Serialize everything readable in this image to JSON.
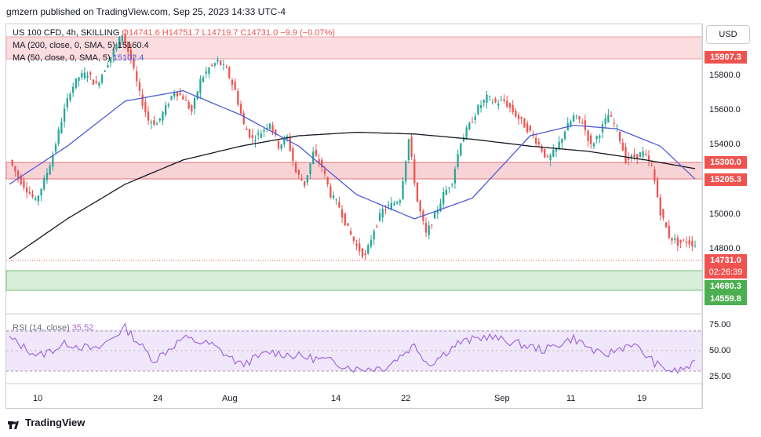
{
  "header": {
    "published": "gmzern published on TradingView.com, Sep 25, 2023 14:33 UTC-4"
  },
  "legend": {
    "symbol": "US 100 CFD, 4h, SKILLING",
    "ohlc": "O14741.6  H14751.7  L14719.7  C14731.0  −9.9  (−0.07%)",
    "ma200_label": "MA (200, close, 0, SMA, 5)",
    "ma200_value": "15160.4",
    "ma50_label": "MA (50, close, 0, SMA, 5)",
    "ma50_value": "15102.4",
    "rsi_label": "RSI (14, close)",
    "rsi_value": "35.52"
  },
  "currency": "USD",
  "price_axis": [
    "15800.0",
    "15600.0",
    "15400.0",
    "15000.0",
    "14800.0"
  ],
  "rsi_axis": [
    "75.00",
    "50.00",
    "25.00"
  ],
  "time_axis": [
    "10",
    "24",
    "Aug",
    "14",
    "22",
    "Sep",
    "11",
    "19"
  ],
  "price_tags": {
    "zone_top": "15907.3",
    "zone_upper_top": "15300.0",
    "zone_upper_bottom": "15205.3",
    "last_price": "14731.0",
    "countdown": "02:26:39",
    "zone_lower_top": "14680.3",
    "zone_lower_bottom": "14559.8"
  },
  "colors": {
    "up": "#26a69a",
    "down": "#ef5350",
    "ma50": "#4e5bd8",
    "ma200": "#131722",
    "rsi": "#9c6ade",
    "resistance": "#f7c6c9",
    "support": "#cfe9cf"
  },
  "footer": {
    "brand": "TradingView"
  },
  "chart_data": {
    "type": "candlestick",
    "symbol": "US 100 CFD",
    "timeframe": "4h",
    "zones": [
      {
        "type": "resistance",
        "from": 15907.3,
        "to": 15990
      },
      {
        "type": "resistance",
        "from": 15205.3,
        "to": 15300.0
      },
      {
        "type": "support",
        "from": 14559.8,
        "to": 14680.3
      }
    ],
    "close_path": [
      [
        0,
        15220
      ],
      [
        3,
        15120
      ],
      [
        6,
        15050
      ],
      [
        9,
        14980
      ],
      [
        12,
        15100
      ],
      [
        15,
        15250
      ],
      [
        18,
        15450
      ],
      [
        21,
        15620
      ],
      [
        24,
        15700
      ],
      [
        27,
        15720
      ],
      [
        30,
        15650
      ],
      [
        33,
        15750
      ],
      [
        36,
        15850
      ],
      [
        39,
        15950
      ],
      [
        42,
        15800
      ],
      [
        45,
        15600
      ],
      [
        48,
        15450
      ],
      [
        51,
        15430
      ],
      [
        54,
        15520
      ],
      [
        57,
        15620
      ],
      [
        60,
        15580
      ],
      [
        63,
        15500
      ],
      [
        66,
        15680
      ],
      [
        69,
        15750
      ],
      [
        72,
        15790
      ],
      [
        75,
        15740
      ],
      [
        78,
        15620
      ],
      [
        81,
        15420
      ],
      [
        84,
        15340
      ],
      [
        87,
        15380
      ],
      [
        90,
        15440
      ],
      [
        93,
        15300
      ],
      [
        96,
        15350
      ],
      [
        99,
        15150
      ],
      [
        102,
        15080
      ],
      [
        105,
        15260
      ],
      [
        108,
        15180
      ],
      [
        111,
        15020
      ],
      [
        114,
        14950
      ],
      [
        117,
        14820
      ],
      [
        120,
        14720
      ],
      [
        123,
        14660
      ],
      [
        126,
        14820
      ],
      [
        129,
        14930
      ],
      [
        132,
        14960
      ],
      [
        135,
        15000
      ],
      [
        138,
        15340
      ],
      [
        141,
        14980
      ],
      [
        144,
        14790
      ],
      [
        147,
        14900
      ],
      [
        150,
        15020
      ],
      [
        153,
        15100
      ],
      [
        156,
        15330
      ],
      [
        159,
        15420
      ],
      [
        162,
        15520
      ],
      [
        165,
        15580
      ],
      [
        168,
        15550
      ],
      [
        171,
        15560
      ],
      [
        174,
        15500
      ],
      [
        177,
        15440
      ],
      [
        180,
        15380
      ],
      [
        183,
        15310
      ],
      [
        186,
        15220
      ],
      [
        189,
        15280
      ],
      [
        192,
        15390
      ],
      [
        195,
        15470
      ],
      [
        198,
        15440
      ],
      [
        201,
        15300
      ],
      [
        204,
        15380
      ],
      [
        207,
        15480
      ],
      [
        210,
        15400
      ],
      [
        213,
        15220
      ],
      [
        216,
        15240
      ],
      [
        219,
        15260
      ],
      [
        222,
        15180
      ],
      [
        225,
        14920
      ],
      [
        228,
        14780
      ],
      [
        231,
        14740
      ],
      [
        234,
        14750
      ],
      [
        237,
        14731
      ]
    ],
    "ma50_path": [
      [
        0,
        15080
      ],
      [
        20,
        15300
      ],
      [
        40,
        15560
      ],
      [
        60,
        15620
      ],
      [
        80,
        15480
      ],
      [
        100,
        15300
      ],
      [
        120,
        15020
      ],
      [
        140,
        14880
      ],
      [
        160,
        15000
      ],
      [
        180,
        15360
      ],
      [
        195,
        15420
      ],
      [
        210,
        15400
      ],
      [
        225,
        15300
      ],
      [
        237,
        15110
      ]
    ],
    "ma200_path": [
      [
        0,
        14650
      ],
      [
        20,
        14880
      ],
      [
        40,
        15080
      ],
      [
        60,
        15220
      ],
      [
        80,
        15300
      ],
      [
        100,
        15360
      ],
      [
        120,
        15380
      ],
      [
        140,
        15370
      ],
      [
        160,
        15340
      ],
      [
        180,
        15300
      ],
      [
        200,
        15270
      ],
      [
        220,
        15220
      ],
      [
        237,
        15170
      ]
    ],
    "rsi_path": [
      [
        0,
        66
      ],
      [
        10,
        45
      ],
      [
        20,
        60
      ],
      [
        30,
        52
      ],
      [
        40,
        78
      ],
      [
        50,
        40
      ],
      [
        60,
        66
      ],
      [
        70,
        58
      ],
      [
        80,
        35
      ],
      [
        90,
        50
      ],
      [
        100,
        45
      ],
      [
        110,
        40
      ],
      [
        120,
        30
      ],
      [
        130,
        32
      ],
      [
        140,
        58
      ],
      [
        145,
        35
      ],
      [
        155,
        60
      ],
      [
        165,
        68
      ],
      [
        175,
        60
      ],
      [
        185,
        52
      ],
      [
        195,
        66
      ],
      [
        205,
        45
      ],
      [
        215,
        60
      ],
      [
        225,
        32
      ],
      [
        230,
        27
      ],
      [
        237,
        35.52
      ]
    ]
  }
}
